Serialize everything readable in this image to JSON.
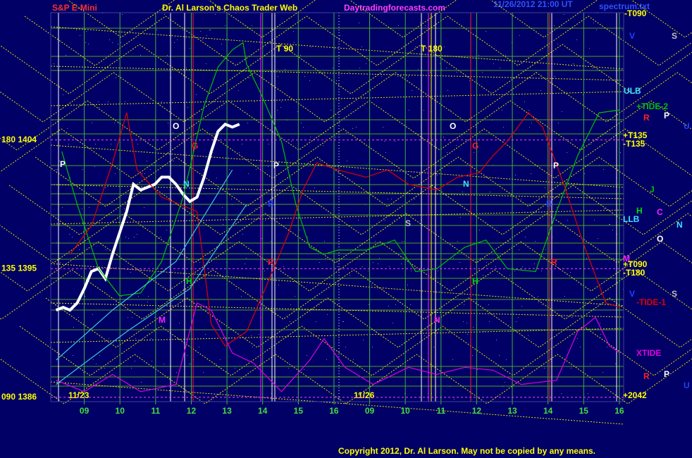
{
  "chart_data": {
    "type": "line",
    "title": "S&P E-Mini",
    "subtitle": "Dr. Al Larson's Chaos Trader Web",
    "source": "Daytradingforecasts.com",
    "timestamp": "11/26/2012 21:00 UT",
    "file": "spectrum.txt",
    "copyright": "Copyright 2012, Dr. Al Larson. May not be copied by any means.",
    "dates": [
      "11/23",
      "11/26"
    ],
    "grid": true,
    "xlim": [
      8.06,
      24.12
    ],
    "xticks": [
      {
        "value": 9,
        "label": "09"
      },
      10,
      11,
      12,
      13,
      14,
      15,
      16,
      {
        "value": 17,
        "label": "09"
      },
      {
        "value": 18,
        "label": "10"
      },
      {
        "value": 19,
        "label": "11"
      },
      {
        "value": 20,
        "label": "12"
      },
      {
        "value": 21,
        "label": "13"
      },
      {
        "value": 22,
        "label": "14"
      },
      {
        "value": 23,
        "label": "15"
      },
      {
        "value": 24,
        "label": "16"
      }
    ],
    "ylim": [
      1385.7,
      1412.9
    ],
    "yticks": [
      {
        "value": 1404,
        "label": "180  1404"
      },
      {
        "value": 1395,
        "label": "135  1395"
      },
      {
        "value": 1386,
        "label": "090  1386"
      }
    ],
    "series": [
      {
        "color": "#ffffff",
        "x": [
          8.21,
          8.41,
          8.6,
          8.8,
          9,
          9.2,
          9.4,
          9.59,
          9.79,
          9.99,
          10.19,
          10.38,
          10.58,
          10.78,
          10.98,
          11.17,
          11.37,
          11.57,
          11.77,
          11.96,
          12.16,
          12.36,
          12.56,
          12.75,
          12.95,
          13.15,
          13.35
        ],
        "values": [
          1392.1,
          1392.3,
          1392.1,
          1392.6,
          1393.6,
          1394.8,
          1395.0,
          1394.3,
          1396.0,
          1397.5,
          1399.0,
          1400.9,
          1400.5,
          1400.7,
          1400.9,
          1401.4,
          1401.4,
          1400.9,
          1400.2,
          1399.7,
          1400.0,
          1401.4,
          1403.2,
          1404.6,
          1405.1,
          1404.9,
          1405.1
        ]
      },
      {
        "name": "+TIDE-2",
        "color": "#00c000",
        "x": [
          8.37,
          8.8,
          9.4,
          9.99,
          10.58,
          11.17,
          11.77,
          12.36,
          12.75,
          13.15,
          13.45,
          13.55,
          13.94,
          14.53,
          14.93,
          15.32,
          15.72,
          16.11,
          16.9,
          17.7,
          18.29,
          18.88,
          19.67,
          20.26,
          20.86,
          21.65,
          22.24,
          22.83,
          23.43,
          24.02
        ],
        "values": [
          1403.2,
          1399.5,
          1395.0,
          1393.1,
          1393.3,
          1395.5,
          1400.0,
          1406.4,
          1409.1,
          1410.3,
          1410.8,
          1409.3,
          1407.3,
          1403.9,
          1399.5,
          1396.5,
          1396.0,
          1396.3,
          1396.3,
          1397.0,
          1394.8,
          1395.0,
          1396.5,
          1397.0,
          1395.0,
          1394.8,
          1399.0,
          1402.9,
          1405.9,
          1406.1
        ]
      },
      {
        "name": "-TIDE-1",
        "color": "#e00000",
        "x": [
          8.6,
          9.2,
          9.79,
          10.19,
          10.48,
          11.17,
          12.16,
          12.56,
          12.95,
          13.55,
          14.14,
          14.73,
          15.13,
          15.52,
          16.11,
          16.9,
          17.5,
          18.09,
          18.88,
          19.47,
          20.07,
          20.46,
          20.86,
          21.45,
          21.85,
          22.44,
          23.03,
          23.62,
          24.02
        ],
        "values": [
          1396.0,
          1398.0,
          1402.4,
          1405.9,
          1401.9,
          1400.0,
          1399.0,
          1391.1,
          1389.6,
          1390.6,
          1394.0,
          1397.5,
          1400.5,
          1402.4,
          1401.9,
          1401.4,
          1401.9,
          1400.9,
          1400.5,
          1401.4,
          1401.7,
          1402.9,
          1403.9,
          1405.9,
          1404.9,
          1400.9,
          1396.5,
          1392.6,
          1392.3
        ]
      },
      {
        "name": "XTIDE",
        "color": "#e000e0",
        "x": [
          8.21,
          9,
          9.79,
          10.58,
          11.57,
          12.16,
          12.56,
          13.15,
          13.74,
          14.53,
          15.32,
          15.72,
          16.31,
          17.1,
          18.09,
          18.88,
          19.67,
          20.46,
          21.25,
          22.24,
          22.83,
          23.33,
          23.72,
          24.02
        ],
        "values": [
          1387.2,
          1386.4,
          1387.6,
          1386.4,
          1386.9,
          1392.6,
          1392.1,
          1389.1,
          1388.4,
          1386.4,
          1388.6,
          1390.1,
          1388.1,
          1386.9,
          1388.1,
          1387.6,
          1388.1,
          1387.9,
          1386.9,
          1387.2,
          1390.6,
          1391.6,
          1389.6,
          1389.1
        ]
      },
      {
        "color": "#40c8d8",
        "x": [
          8.21,
          9.79,
          11.57,
          13.15
        ],
        "values": [
          1388.6,
          1392.1,
          1395.5,
          1401.9
        ]
      },
      {
        "color": "#40c8d8",
        "x": [
          8.21,
          10.19,
          11.96,
          13.55
        ],
        "values": [
          1386.9,
          1390.6,
          1393.6,
          1399.5
        ]
      }
    ],
    "annotations": [
      {
        "text": "-T090",
        "color": "#ffff00"
      },
      {
        "text": "V",
        "color": "#2040ff"
      },
      {
        "text": "S",
        "color": "#c0c0c0"
      },
      {
        "text": "ULB",
        "color": "#40e0ff"
      },
      {
        "text": "R",
        "color": "#ff2020"
      },
      {
        "text": "P",
        "color": "#ffffff"
      },
      {
        "text": "U",
        "color": "#2040ff"
      },
      {
        "text": "+T135",
        "color": "#ffff00"
      },
      {
        "text": "-T135",
        "color": "#ffff00"
      },
      {
        "text": "J",
        "color": "#00c000"
      },
      {
        "text": "H",
        "color": "#00e000"
      },
      {
        "text": "C",
        "color": "#ff20ff"
      },
      {
        "text": "LLB",
        "color": "#40e0ff"
      },
      {
        "text": "N",
        "color": "#40e0ff"
      },
      {
        "text": "O",
        "color": "#ffffff"
      },
      {
        "text": "M",
        "color": "#ff20ff"
      },
      {
        "text": "+T090",
        "color": "#ffff00"
      },
      {
        "text": "-T180",
        "color": "#ffff00"
      },
      {
        "text": "V",
        "color": "#2040ff"
      },
      {
        "text": "S",
        "color": "#c0c0c0"
      },
      {
        "text": "R",
        "color": "#ff2020"
      },
      {
        "text": "P",
        "color": "#ffffff"
      },
      {
        "text": "U",
        "color": "#2040ff"
      },
      {
        "text": "+2042",
        "color": "#ffff00"
      },
      {
        "text": "T   90",
        "color": "#ffff00"
      },
      {
        "text": "T   180",
        "color": "#ffff00"
      },
      {
        "text": "O",
        "color": "#ffffff"
      },
      {
        "text": "P",
        "color": "#ffffff"
      },
      {
        "text": "G",
        "color": "#ff2020"
      },
      {
        "text": "N",
        "color": "#40e0ff"
      },
      {
        "text": "B",
        "color": "#2040ff"
      },
      {
        "text": "P",
        "color": "#ffffff"
      },
      {
        "text": "H",
        "color": "#00e000"
      },
      {
        "text": "M",
        "color": "#ff20ff"
      },
      {
        "text": "R",
        "color": "#ff2020"
      },
      {
        "text": "O",
        "color": "#ffffff"
      },
      {
        "text": "G",
        "color": "#ff2020"
      },
      {
        "text": "N",
        "color": "#40e0ff"
      },
      {
        "text": "S",
        "color": "#c0c0c0"
      },
      {
        "text": "P",
        "color": "#ffffff"
      },
      {
        "text": "B",
        "color": "#2040ff"
      },
      {
        "text": "H",
        "color": "#00e000"
      },
      {
        "text": "N",
        "color": "#ff20ff"
      },
      {
        "text": "R",
        "color": "#ff2020"
      }
    ]
  }
}
